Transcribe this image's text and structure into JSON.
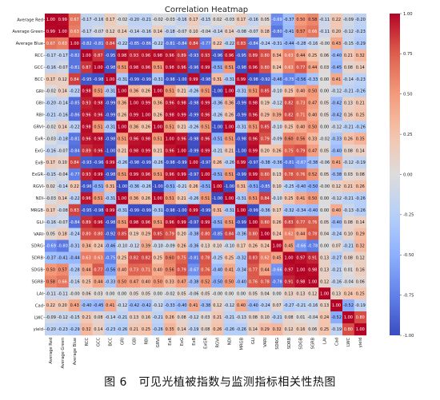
{
  "caption": "图 6　可见光植被指数与监测指标相关性热图",
  "chart_data": {
    "type": "heatmap",
    "title": "Correlation Heatmap",
    "colormap": "coolwarm",
    "colorbar": {
      "min": -1.0,
      "max": 1.0,
      "ticks": [
        "1.00",
        "0.75",
        "0.50",
        "0.25",
        "0.00",
        "-0.25",
        "-0.50",
        "-0.75",
        "-1.00"
      ]
    },
    "variables": [
      "Average Red",
      "Average Green",
      "Average Blue",
      "RCC",
      "GCC",
      "BCC",
      "GRI",
      "GBI",
      "RBI",
      "GRVI",
      "ExR",
      "ExG",
      "ExB",
      "ExGR",
      "RGVI",
      "NDI",
      "MRGB",
      "GLI",
      "VARI",
      "SDRG",
      "SDRB",
      "SDGB",
      "SGRB",
      "LAI",
      "Cad",
      "LWC",
      "yield"
    ],
    "matrix": [
      [
        "1.00",
        "0.99",
        "0.67",
        "-0.17",
        "-0.16",
        "0.17",
        "-0.02",
        "-0.20",
        "-0.21",
        "-0.02",
        "-0.03",
        "-0.16",
        "0.17",
        "-0.15",
        "0.02",
        "-0.03",
        "0.17",
        "-0.16",
        "0.05",
        "-0.69",
        "-0.37",
        "0.50",
        "0.58",
        "-0.11",
        "0.22",
        "-0.09",
        "-0.20"
      ],
      [
        "0.99",
        "1.00",
        "0.63",
        "-0.17",
        "-0.07",
        "0.12",
        "0.14",
        "-0.14",
        "-0.16",
        "0.14",
        "-0.18",
        "-0.07",
        "0.10",
        "-0.04",
        "-0.14",
        "0.14",
        "-0.08",
        "-0.07",
        "0.18",
        "-0.80",
        "-0.41",
        "0.57",
        "0.66",
        "-0.11",
        "0.20",
        "-0.12",
        "-0.23"
      ],
      [
        "0.67",
        "0.63",
        "1.00",
        "-0.82",
        "-0.81",
        "0.84",
        "-0.22",
        "-0.85",
        "-0.86",
        "-0.22",
        "-0.81",
        "-0.84",
        "0.84",
        "-0.77",
        "0.22",
        "-0.22",
        "0.83",
        "-0.84",
        "-0.24",
        "-0.31",
        "-0.44",
        "-0.28",
        "-0.16",
        "-0.00",
        "0.43",
        "-0.15",
        "-0.29"
      ],
      [
        "-0.17",
        "-0.17",
        "-0.82",
        "1.00",
        "0.87",
        "-0.95",
        "0.98",
        "0.93",
        "0.96",
        "0.98",
        "0.96",
        "0.89",
        "-0.93",
        "0.93",
        "-0.96",
        "0.96",
        "-0.95",
        "0.89",
        "0.80",
        "0.34",
        "0.63",
        "0.44",
        "0.25",
        "0.06",
        "-0.40",
        "0.21",
        "0.32"
      ],
      [
        "-0.16",
        "-0.07",
        "-0.81",
        "0.87",
        "1.00",
        "-0.98",
        "0.51",
        "0.98",
        "0.96",
        "0.51",
        "0.98",
        "0.96",
        "-0.96",
        "0.99",
        "-0.51",
        "0.51",
        "-0.98",
        "0.96",
        "0.80",
        "0.24",
        "0.63",
        "0.77",
        "0.44",
        "0.03",
        "-0.45",
        "0.08",
        "0.14"
      ],
      [
        "0.17",
        "0.12",
        "0.84",
        "-0.95",
        "-0.98",
        "1.00",
        "-0.31",
        "-0.99",
        "-0.99",
        "-0.31",
        "-0.98",
        "-1.00",
        "0.99",
        "-0.98",
        "0.31",
        "-0.31",
        "0.99",
        "-0.98",
        "-0.92",
        "-0.46",
        "-0.75",
        "-0.56",
        "-0.33",
        "0.00",
        "0.41",
        "-0.14",
        "-0.23"
      ],
      [
        "-0.02",
        "0.14",
        "-0.22",
        "0.98",
        "0.51",
        "-0.31",
        "1.00",
        "0.36",
        "0.26",
        "1.00",
        "0.51",
        "0.21",
        "-0.26",
        "0.51",
        "-1.00",
        "1.00",
        "-0.31",
        "0.51",
        "0.85",
        "-0.10",
        "0.25",
        "0.40",
        "0.50",
        "0.00",
        "-0.12",
        "-0.21",
        "-0.26"
      ],
      [
        "-0.20",
        "-0.14",
        "-0.85",
        "0.93",
        "0.98",
        "-0.99",
        "0.36",
        "1.00",
        "0.99",
        "0.36",
        "0.96",
        "0.98",
        "-0.98",
        "0.99",
        "-0.36",
        "0.36",
        "-0.99",
        "0.98",
        "0.19",
        "-0.12",
        "0.82",
        "0.73",
        "0.47",
        "0.05",
        "-0.42",
        "0.13",
        "0.21"
      ],
      [
        "-0.21",
        "-0.16",
        "-0.86",
        "0.96",
        "0.96",
        "-0.99",
        "0.26",
        "0.99",
        "1.00",
        "0.26",
        "0.98",
        "0.99",
        "-0.99",
        "0.96",
        "-0.26",
        "0.26",
        "-0.99",
        "0.96",
        "0.29",
        "0.39",
        "0.82",
        "0.71",
        "0.40",
        "0.05",
        "-0.42",
        "0.16",
        "0.25"
      ],
      [
        "-0.02",
        "0.14",
        "-0.22",
        "0.98",
        "0.51",
        "-0.31",
        "1.00",
        "0.36",
        "0.26",
        "1.00",
        "0.51",
        "0.21",
        "-0.26",
        "0.51",
        "-1.00",
        "1.00",
        "-0.31",
        "0.51",
        "0.85",
        "-0.10",
        "0.25",
        "0.40",
        "0.50",
        "0.00",
        "-0.12",
        "-0.21",
        "-0.26"
      ],
      [
        "-0.03",
        "-0.18",
        "-0.81",
        "0.96",
        "0.98",
        "-0.98",
        "0.51",
        "0.96",
        "0.98",
        "0.51",
        "1.00",
        "0.96",
        "-0.98",
        "0.96",
        "-0.51",
        "0.51",
        "-0.98",
        "0.96",
        "0.79",
        "-0.09",
        "0.60",
        "0.56",
        "0.33",
        "-0.02",
        "-0.33",
        "0.26",
        "0.35"
      ],
      [
        "-0.16",
        "-0.07",
        "-0.84",
        "0.89",
        "0.96",
        "-1.00",
        "0.21",
        "0.98",
        "0.99",
        "0.21",
        "0.96",
        "1.00",
        "-0.99",
        "0.99",
        "-0.21",
        "0.21",
        "-1.00",
        "0.99",
        "0.20",
        "0.26",
        "0.75",
        "0.79",
        "0.47",
        "0.05",
        "-0.40",
        "0.08",
        "0.14"
      ],
      [
        "0.17",
        "0.10",
        "0.84",
        "-0.93",
        "-0.96",
        "0.99",
        "-0.26",
        "-0.98",
        "-0.99",
        "-0.26",
        "-0.98",
        "-0.99",
        "1.00",
        "-0.97",
        "0.26",
        "-0.26",
        "0.99",
        "-0.97",
        "-0.38",
        "-0.36",
        "-0.81",
        "-0.67",
        "-0.38",
        "-0.06",
        "0.41",
        "-0.12",
        "-0.19"
      ],
      [
        "-0.15",
        "-0.04",
        "-0.77",
        "0.93",
        "0.99",
        "-0.98",
        "0.51",
        "0.99",
        "0.96",
        "0.51",
        "0.96",
        "0.99",
        "-0.97",
        "1.00",
        "-0.51",
        "0.51",
        "-0.99",
        "0.99",
        "0.80",
        "0.13",
        "0.78",
        "0.76",
        "0.52",
        "0.05",
        "-0.38",
        "0.03",
        "0.08"
      ],
      [
        "0.02",
        "-0.14",
        "0.22",
        "-0.96",
        "-0.51",
        "0.31",
        "-1.00",
        "-0.36",
        "-0.26",
        "-1.00",
        "-0.51",
        "-0.21",
        "0.26",
        "-0.51",
        "1.00",
        "-1.00",
        "0.31",
        "-0.51",
        "-0.85",
        "0.10",
        "-0.25",
        "-0.40",
        "-0.50",
        "-0.00",
        "0.12",
        "0.21",
        "0.26"
      ],
      [
        "-0.03",
        "0.14",
        "-0.22",
        "0.96",
        "0.51",
        "-0.31",
        "1.00",
        "0.36",
        "0.26",
        "1.00",
        "0.51",
        "0.21",
        "-0.26",
        "0.51",
        "-1.00",
        "1.00",
        "-0.31",
        "0.51",
        "0.84",
        "-0.10",
        "0.25",
        "0.41",
        "0.50",
        "0.00",
        "-0.12",
        "-0.21",
        "-0.26"
      ],
      [
        "0.17",
        "-0.08",
        "0.83",
        "-0.95",
        "-0.98",
        "0.99",
        "-0.31",
        "-0.99",
        "-0.99",
        "-0.31",
        "-0.98",
        "-1.00",
        "0.99",
        "-0.99",
        "0.31",
        "-0.31",
        "1.00",
        "-0.99",
        "-0.36",
        "0.17",
        "-0.32",
        "-0.34",
        "-0.40",
        "0.00",
        "0.40",
        "-0.13",
        "-0.26"
      ],
      [
        "-0.16",
        "-0.07",
        "-0.84",
        "0.89",
        "0.96",
        "-0.98",
        "0.51",
        "0.98",
        "0.96",
        "0.51",
        "0.96",
        "0.99",
        "-0.97",
        "0.99",
        "-0.51",
        "0.51",
        "-0.99",
        "1.00",
        "0.80",
        "0.26",
        "0.83",
        "0.77",
        "0.76",
        "0.05",
        "-0.40",
        "0.08",
        "0.14"
      ],
      [
        "0.05",
        "0.18",
        "-0.24",
        "0.80",
        "0.80",
        "-0.92",
        "0.85",
        "0.19",
        "0.29",
        "0.85",
        "0.79",
        "0.20",
        "-0.38",
        "0.80",
        "-0.85",
        "0.84",
        "-0.36",
        "0.80",
        "1.00",
        "0.24",
        "0.62",
        "0.44",
        "0.78",
        "0.04",
        "-0.24",
        "0.10",
        "0.29"
      ],
      [
        "-0.69",
        "-0.80",
        "-0.31",
        "0.34",
        "0.24",
        "-0.46",
        "-0.10",
        "-0.12",
        "0.39",
        "-0.10",
        "-0.09",
        "0.26",
        "-0.36",
        "0.13",
        "0.10",
        "-0.10",
        "0.17",
        "0.26",
        "0.24",
        "1.00",
        "0.45",
        "-0.66",
        "-0.78",
        "0.00",
        "0.07",
        "-0.21",
        "0.32"
      ],
      [
        "-0.37",
        "-0.41",
        "-0.44",
        "0.63",
        "0.63",
        "-0.75",
        "0.25",
        "0.82",
        "0.82",
        "0.25",
        "0.60",
        "0.75",
        "-0.81",
        "0.78",
        "-0.25",
        "0.25",
        "-0.32",
        "0.83",
        "0.62",
        "0.45",
        "1.00",
        "0.97",
        "0.91",
        "0.13",
        "-0.27",
        "0.08",
        "0.12"
      ],
      [
        "0.50",
        "0.57",
        "-0.28",
        "0.44",
        "0.77",
        "-0.56",
        "0.40",
        "0.73",
        "0.71",
        "0.40",
        "0.56",
        "0.79",
        "-0.67",
        "0.76",
        "-0.40",
        "0.41",
        "-0.34",
        "0.77",
        "0.44",
        "-0.66",
        "0.97",
        "1.00",
        "0.98",
        "0.13",
        "-0.21",
        "0.01",
        "0.16"
      ],
      [
        "0.58",
        "0.66",
        "-0.16",
        "0.25",
        "0.44",
        "-0.33",
        "0.50",
        "0.47",
        "0.40",
        "0.50",
        "0.33",
        "0.47",
        "-0.38",
        "0.52",
        "-0.50",
        "0.50",
        "-0.40",
        "0.76",
        "0.78",
        "-0.78",
        "0.91",
        "0.98",
        "1.00",
        "0.12",
        "-0.16",
        "-0.04",
        "0.06"
      ],
      [
        "-0.11",
        "-0.11",
        "-0.00",
        "0.06",
        "0.03",
        "0.00",
        "0.00",
        "0.05",
        "0.05",
        "0.00",
        "-0.02",
        "0.05",
        "-0.06",
        "0.05",
        "-0.00",
        "0.00",
        "0.00",
        "0.05",
        "0.04",
        "0.00",
        "0.13",
        "0.13",
        "0.12",
        "1.00",
        "0.13",
        "0.24",
        "0.25"
      ],
      [
        "0.22",
        "0.20",
        "0.43",
        "-0.40",
        "-0.45",
        "0.41",
        "-0.12",
        "-0.42",
        "-0.42",
        "-0.12",
        "-0.33",
        "-0.40",
        "0.41",
        "-0.38",
        "0.12",
        "-0.12",
        "0.40",
        "-0.40",
        "-0.24",
        "0.07",
        "-0.27",
        "-0.21",
        "-0.16",
        "0.13",
        "1.00",
        "-0.52",
        "-0.19"
      ],
      [
        "-0.09",
        "-0.12",
        "-0.15",
        "0.21",
        "0.08",
        "-0.14",
        "-0.21",
        "0.13",
        "0.16",
        "-0.21",
        "0.26",
        "0.08",
        "-0.12",
        "0.03",
        "0.21",
        "-0.21",
        "-0.13",
        "0.08",
        "0.10",
        "-0.21",
        "0.08",
        "0.01",
        "-0.04",
        "0.24",
        "-0.52",
        "1.00",
        "0.80"
      ],
      [
        "-0.20",
        "-0.23",
        "-0.29",
        "0.32",
        "0.14",
        "-0.23",
        "-0.26",
        "0.21",
        "0.25",
        "-0.26",
        "0.35",
        "0.14",
        "-0.19",
        "0.08",
        "0.26",
        "-0.26",
        "-0.26",
        "0.14",
        "0.29",
        "0.32",
        "0.12",
        "0.16",
        "0.06",
        "0.25",
        "-0.19",
        "0.80",
        "1.00"
      ]
    ]
  }
}
